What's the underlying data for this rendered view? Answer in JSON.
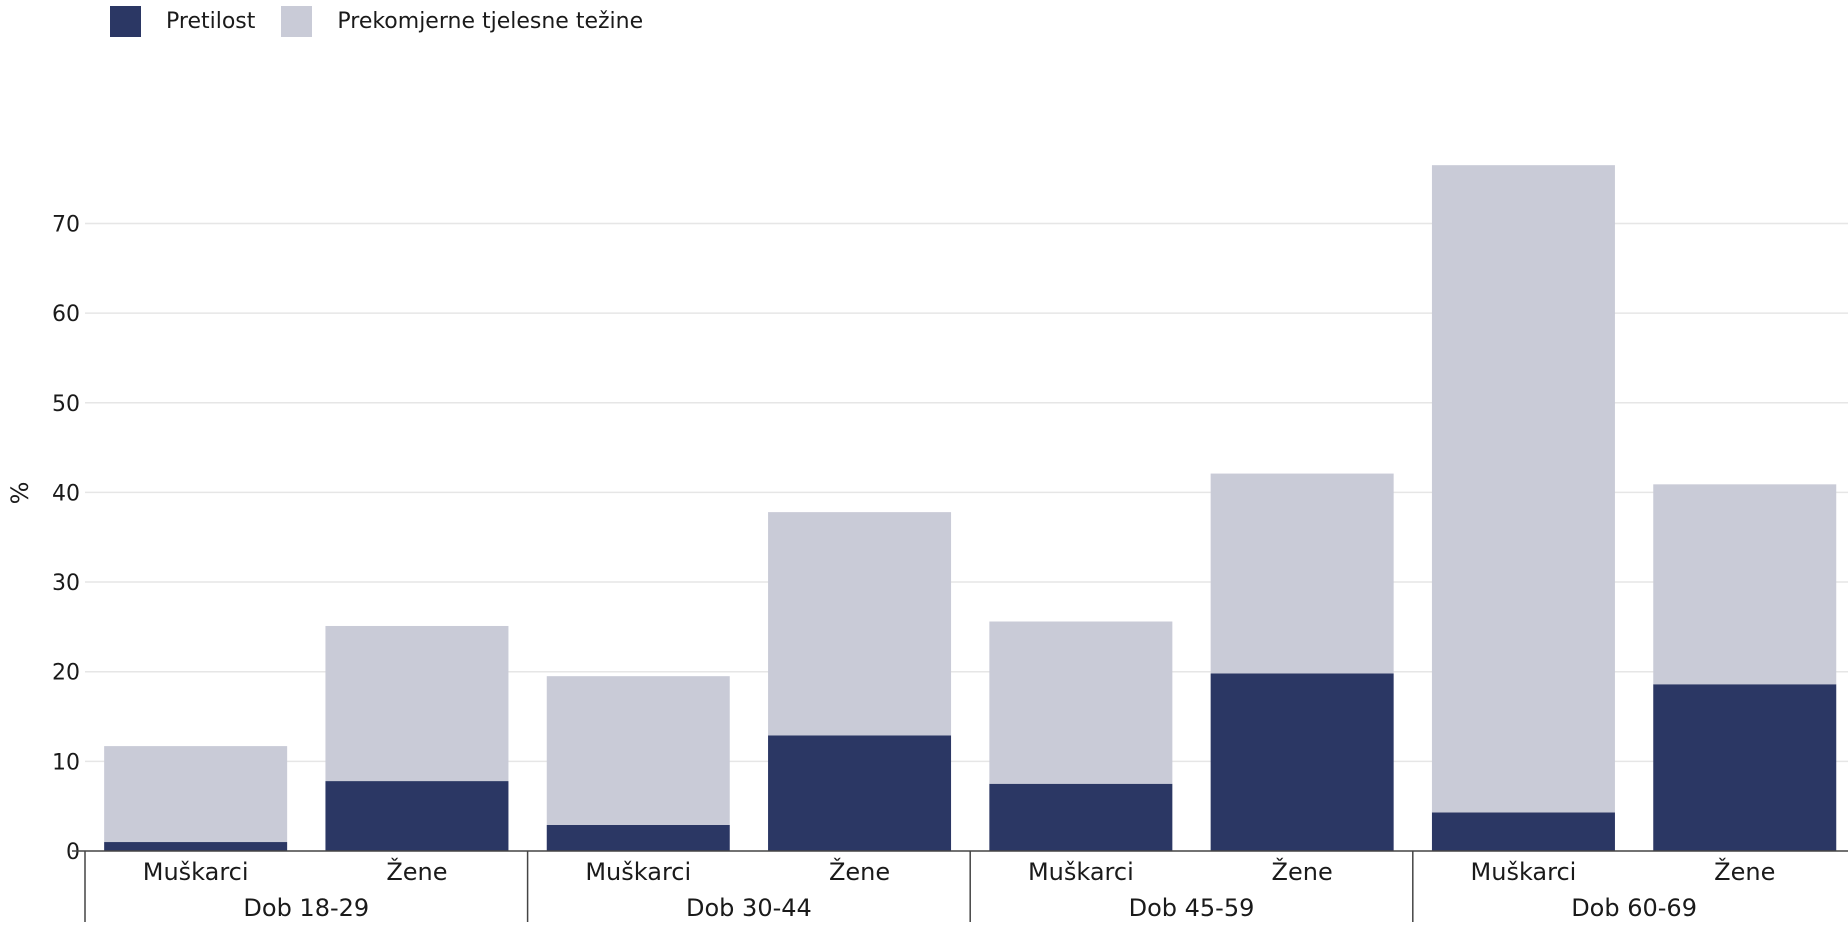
{
  "chart_data": {
    "type": "bar",
    "stacked": true,
    "ylabel": "%",
    "ylim": [
      0,
      76
    ],
    "yticks": [
      0,
      10,
      20,
      30,
      40,
      50,
      60,
      70
    ],
    "grid": true,
    "legend_position": "top-left",
    "groups": [
      {
        "label": "Dob 18-29",
        "categories": [
          "Muškarci",
          "Žene"
        ]
      },
      {
        "label": "Dob 30-44",
        "categories": [
          "Muškarci",
          "Žene"
        ]
      },
      {
        "label": "Dob 45-59",
        "categories": [
          "Muškarci",
          "Žene"
        ]
      },
      {
        "label": "Dob 60-69",
        "categories": [
          "Muškarci",
          "Žene"
        ]
      }
    ],
    "series": [
      {
        "name": "Pretilost",
        "color": "#2b3764",
        "values": [
          1.0,
          7.8,
          2.9,
          12.9,
          7.5,
          19.8,
          4.3,
          18.6
        ]
      },
      {
        "name": "Prekomjerne tjelesne težine",
        "color": "#c9cbd7",
        "values": [
          10.7,
          17.3,
          16.6,
          24.9,
          18.1,
          22.3,
          72.2,
          22.3
        ]
      }
    ]
  }
}
